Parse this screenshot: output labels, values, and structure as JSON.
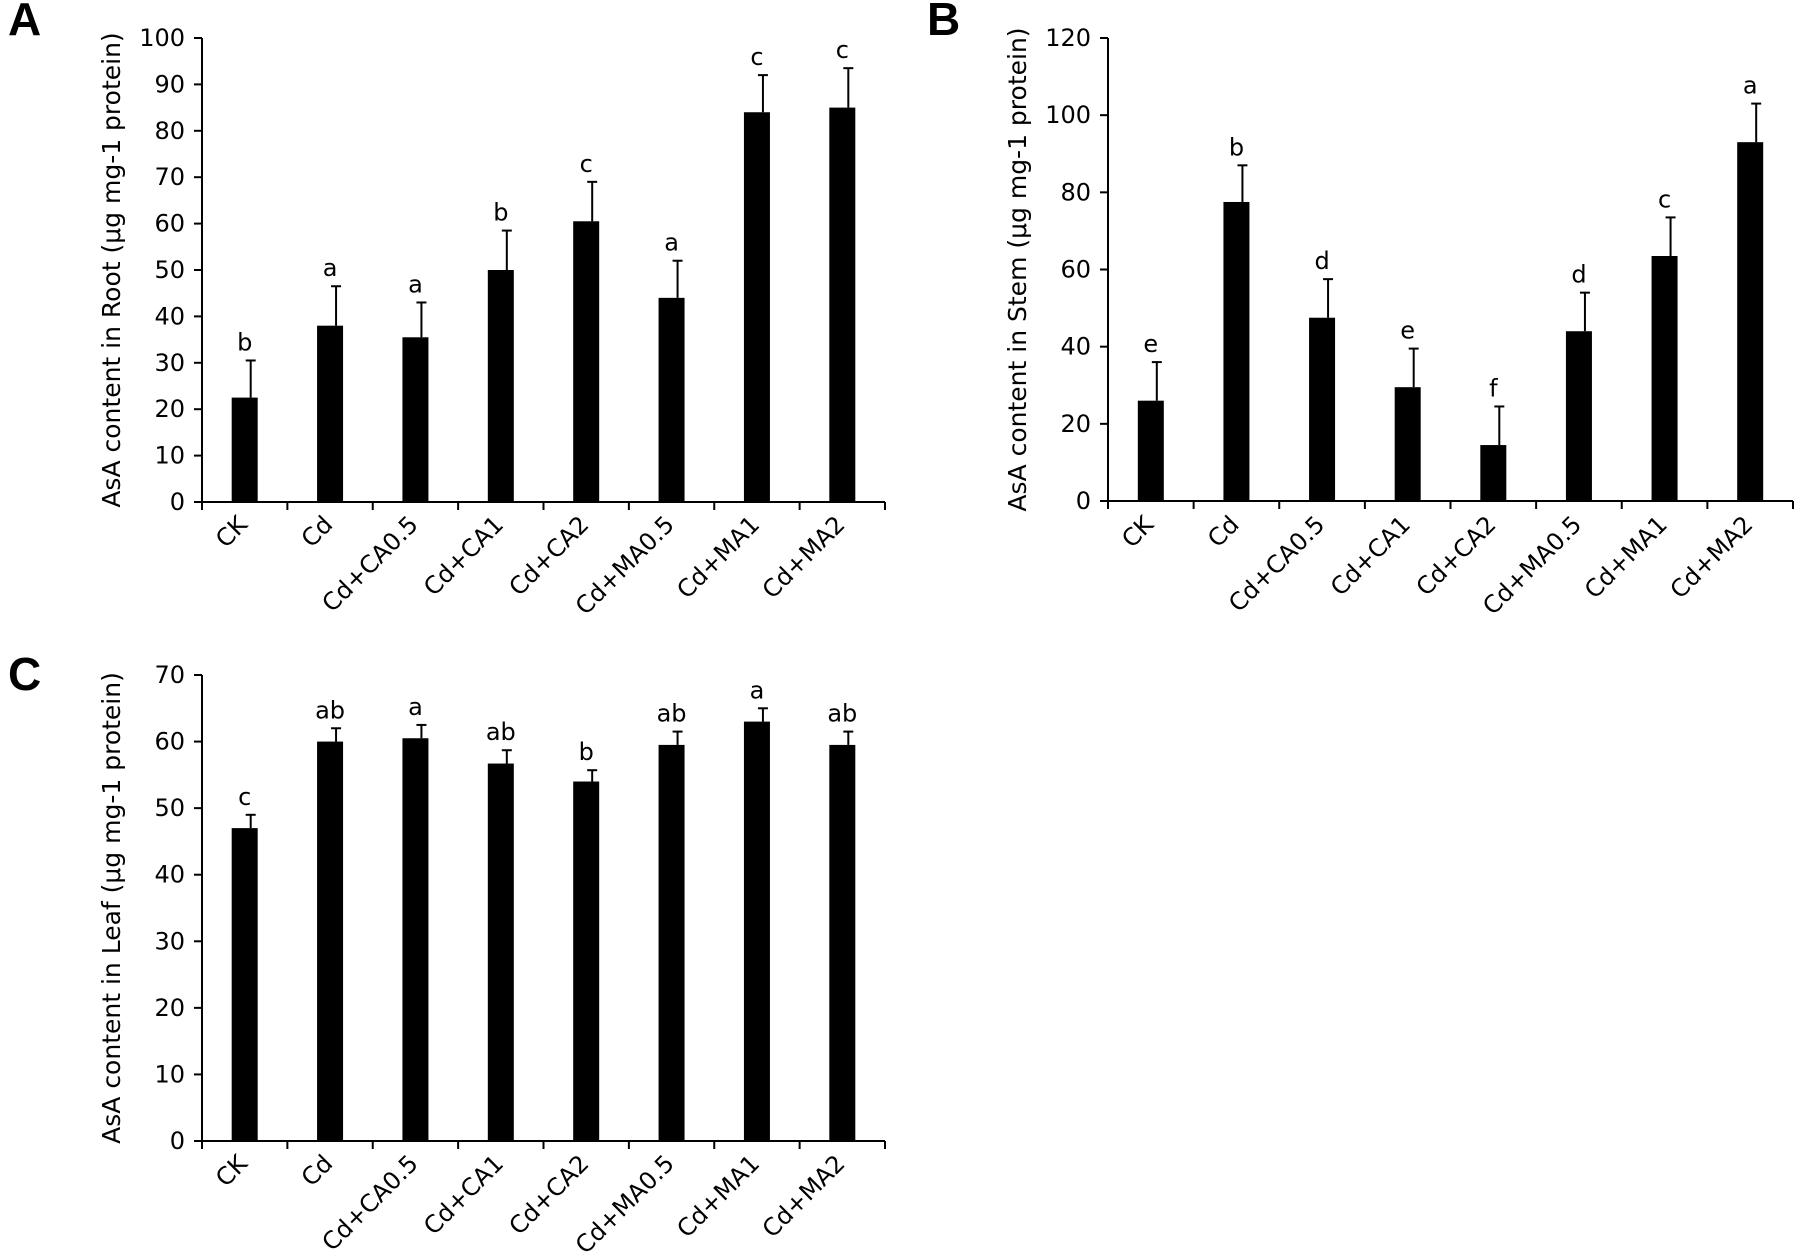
{
  "chart_data": [
    {
      "panel": "A",
      "type": "bar",
      "ylabel": "AsA content in Root (μg mg-1 protein)",
      "xlabel": "",
      "ylim": [
        0,
        100
      ],
      "yticks": [
        0,
        10,
        20,
        30,
        40,
        50,
        60,
        70,
        80,
        90,
        100
      ],
      "categories": [
        "CK",
        "Cd",
        "Cd+CA0.5",
        "Cd+CA1",
        "Cd+CA2",
        "Cd+MA0.5",
        "Cd+MA1",
        "Cd+MA2"
      ],
      "values": [
        22.5,
        38,
        35.5,
        50,
        60.5,
        44,
        84,
        85
      ],
      "errors": [
        8,
        8.5,
        7.5,
        8.5,
        8.5,
        8,
        8,
        8.5
      ],
      "labels": [
        "b",
        "a",
        "a",
        "b",
        "c",
        "a",
        "c",
        "c"
      ],
      "bar_color": "#000000"
    },
    {
      "panel": "B",
      "type": "bar",
      "ylabel": "AsA content in Stem (μg mg-1 protein)",
      "xlabel": "",
      "ylim": [
        0,
        120
      ],
      "yticks": [
        0,
        20,
        40,
        60,
        80,
        100,
        120
      ],
      "categories": [
        "CK",
        "Cd",
        "Cd+CA0.5",
        "Cd+CA1",
        "Cd+CA2",
        "Cd+MA0.5",
        "Cd+MA1",
        "Cd+MA2"
      ],
      "values": [
        26,
        77.5,
        47.5,
        29.5,
        14.5,
        44,
        63.5,
        93
      ],
      "errors": [
        10,
        9.5,
        10,
        10,
        10,
        10,
        10,
        10
      ],
      "labels": [
        "e",
        "b",
        "d",
        "e",
        "f",
        "d",
        "c",
        "a"
      ],
      "bar_color": "#000000"
    },
    {
      "panel": "C",
      "type": "bar",
      "ylabel": "AsA content in Leaf (μg mg-1 protein)",
      "xlabel": "",
      "ylim": [
        0,
        70
      ],
      "yticks": [
        0,
        10,
        20,
        30,
        40,
        50,
        60,
        70
      ],
      "categories": [
        "CK",
        "Cd",
        "Cd+CA0.5",
        "Cd+CA1",
        "Cd+CA2",
        "Cd+MA0.5",
        "Cd+MA1",
        "Cd+MA2"
      ],
      "values": [
        47,
        60,
        60.5,
        56.7,
        54,
        59.5,
        63,
        59.5
      ],
      "errors": [
        2,
        2,
        2,
        2,
        1.7,
        2,
        2,
        2
      ],
      "labels": [
        "c",
        "ab",
        "a",
        "ab",
        "b",
        "ab",
        "a",
        "ab"
      ],
      "bar_color": "#000000"
    }
  ]
}
